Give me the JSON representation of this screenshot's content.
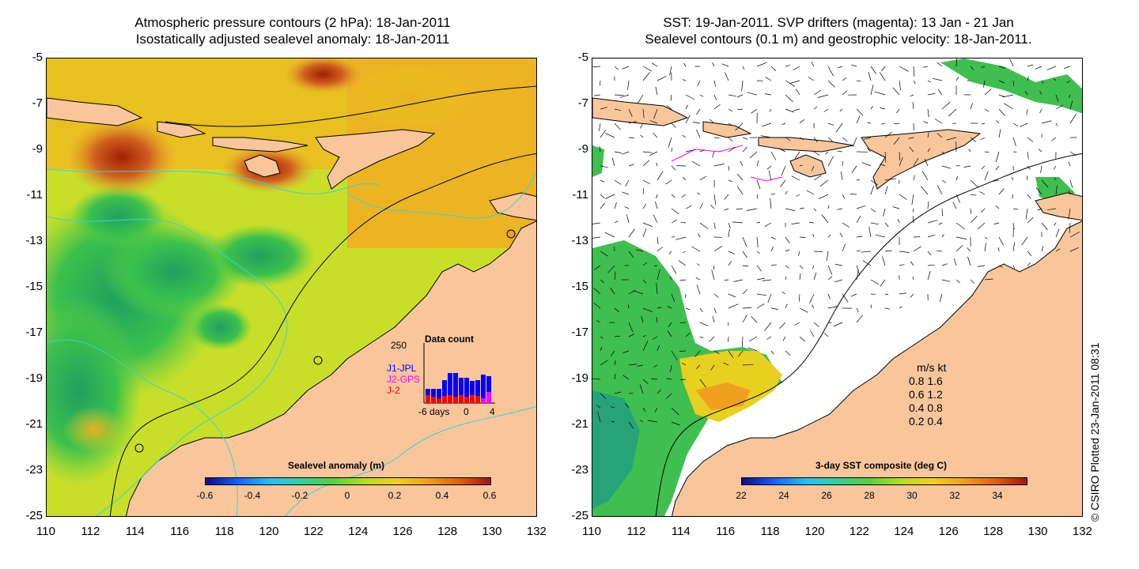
{
  "left": {
    "title_line1": "Atmospheric pressure contours (2 hPa): 18-Jan-2011",
    "title_line2": "Isostatically adjusted sealevel anomaly: 18-Jan-2011",
    "y_ticks": [
      "-5",
      "-7",
      "-9",
      "-11",
      "-13",
      "-15",
      "-17",
      "-19",
      "-21",
      "-23",
      "-25"
    ],
    "x_ticks": [
      "110",
      "112",
      "114",
      "116",
      "118",
      "120",
      "122",
      "124",
      "126",
      "128",
      "130",
      "132"
    ],
    "colorbar": {
      "title": "Sealevel anomaly (m)",
      "labels": [
        "-0.6",
        "-0.4",
        "-0.2",
        "0",
        "0.2",
        "0.4",
        "0.6"
      ]
    },
    "inset": {
      "title": "Data count",
      "ymax": "250",
      "series": [
        {
          "name": "J1-JPL",
          "color": "#0000ff"
        },
        {
          "name": "J2-GPS",
          "color": "#ff00ff"
        },
        {
          "name": "J-2",
          "color": "#ff0000"
        }
      ],
      "x_labels": [
        "-6",
        "days",
        "0",
        "4"
      ]
    }
  },
  "right": {
    "title_line1": "SST: 19-Jan-2011. SVP drifters (magenta): 13 Jan - 21 Jan",
    "title_line2": "Sealevel contours (0.1 m) and geostrophic velocity: 18-Jan-2011.",
    "y_ticks": [
      "-5",
      "-7",
      "-9",
      "-11",
      "-13",
      "-15",
      "-17",
      "-19",
      "-21",
      "-23",
      "-25"
    ],
    "x_ticks": [
      "110",
      "112",
      "114",
      "116",
      "118",
      "120",
      "122",
      "124",
      "126",
      "128",
      "130",
      "132"
    ],
    "colorbar": {
      "title": "3-day SST composite (deg C)",
      "labels": [
        "22",
        "24",
        "26",
        "28",
        "30",
        "32",
        "34"
      ]
    },
    "legend": {
      "header": "m/s  kt",
      "rows": [
        "0.8  1.6",
        "0.6  1.2",
        "0.4  0.8",
        "0.2  0.4"
      ]
    }
  },
  "credit": "© CSIRO Plotted 23-Jan-2011 08:31",
  "colors": {
    "land": "#f9c69c",
    "sea_green": "#3fbf4f",
    "sea_yellow": "#e8e02a",
    "sea_orange": "#f0a020",
    "sea_red": "#c04010",
    "coast_cyan": "#40d0d0"
  }
}
